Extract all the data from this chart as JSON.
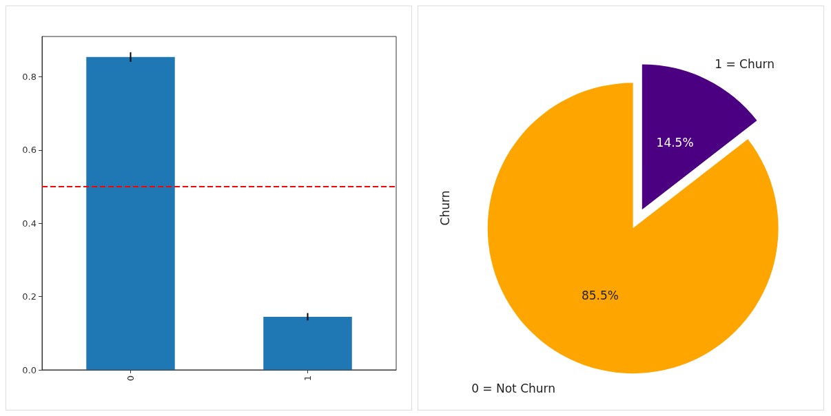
{
  "chart_data": [
    {
      "type": "bar",
      "categories": [
        "0",
        "1"
      ],
      "values": [
        0.854,
        0.145
      ],
      "errors": [
        0.013,
        0.01
      ],
      "color": "#1f77b4",
      "ylim": [
        0,
        0.91
      ],
      "yticks": [
        {
          "value": 0,
          "label": "0.0"
        },
        {
          "value": 0.2,
          "label": "0.2"
        },
        {
          "value": 0.4,
          "label": "0.4"
        },
        {
          "value": 0.6,
          "label": "0.6"
        },
        {
          "value": 0.8,
          "label": "0.8"
        }
      ],
      "ref_lines": [
        {
          "axis": "y",
          "value": 0.5,
          "color": "#ff0000",
          "line_style": "dashed"
        }
      ],
      "grid": false
    },
    {
      "type": "pie",
      "ylabel": "Churn",
      "categories": [
        "0 = Not Churn",
        "1 = Churn"
      ],
      "values": [
        85.5,
        14.5
      ],
      "colors": [
        "#ffa500",
        "#4b0082"
      ],
      "value_labels": [
        "85.5%",
        "14.5%"
      ]
    }
  ]
}
